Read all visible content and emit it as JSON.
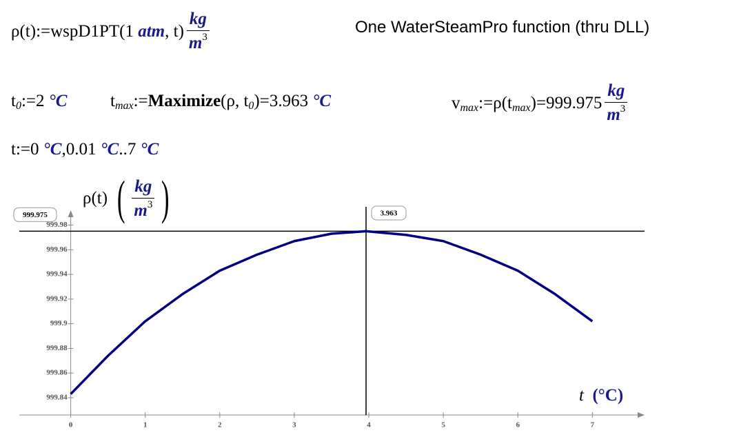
{
  "note": "One WaterSteamPro function (thru DLL)",
  "eq1": [
    "ρ(t)",
    ":=",
    "wspD1PT",
    "(1 ",
    "atm",
    ", t)",
    "kg",
    "m",
    "3"
  ],
  "eq2": [
    "t",
    "0",
    ":=",
    "2",
    "°C"
  ],
  "eq3": [
    "t",
    "max",
    ":=",
    "Maximize",
    "(ρ, t",
    "0",
    ")",
    "=",
    "3.963",
    "°C"
  ],
  "eq4": [
    "v",
    "max",
    ":=",
    "ρ",
    "(t",
    "max",
    ")",
    "=",
    "999.975",
    "kg",
    "m",
    "3"
  ],
  "eq5": [
    "t",
    ":=",
    "0",
    "°C",
    ",",
    "0.01",
    "°C",
    "..",
    "7",
    "°C"
  ],
  "chart_data": {
    "type": "line",
    "x_label": [
      "t",
      "(°C)"
    ],
    "y_label": [
      "ρ(t)",
      "kg",
      "m",
      "3"
    ],
    "x": [
      0,
      0.5,
      1,
      1.5,
      2,
      2.5,
      3,
      3.5,
      3.963,
      4.5,
      5,
      5.5,
      6,
      6.5,
      7
    ],
    "series": [
      {
        "color": "#000080",
        "values": [
          999.843,
          999.874,
          999.902,
          999.924,
          999.943,
          999.956,
          999.967,
          999.973,
          999.975,
          999.972,
          999.967,
          999.956,
          999.943,
          999.924,
          999.902
        ]
      }
    ],
    "xlim": [
      -0.69,
      7.7
    ],
    "xticks": [
      0,
      1,
      2,
      3,
      4,
      5,
      6,
      7
    ],
    "ylim": [
      999.826,
      999.992
    ],
    "yticks": [
      999.84,
      999.86,
      999.88,
      999.9,
      999.92,
      999.94,
      999.96,
      999.98
    ],
    "hline": 999.975,
    "vline": 3.963
  }
}
